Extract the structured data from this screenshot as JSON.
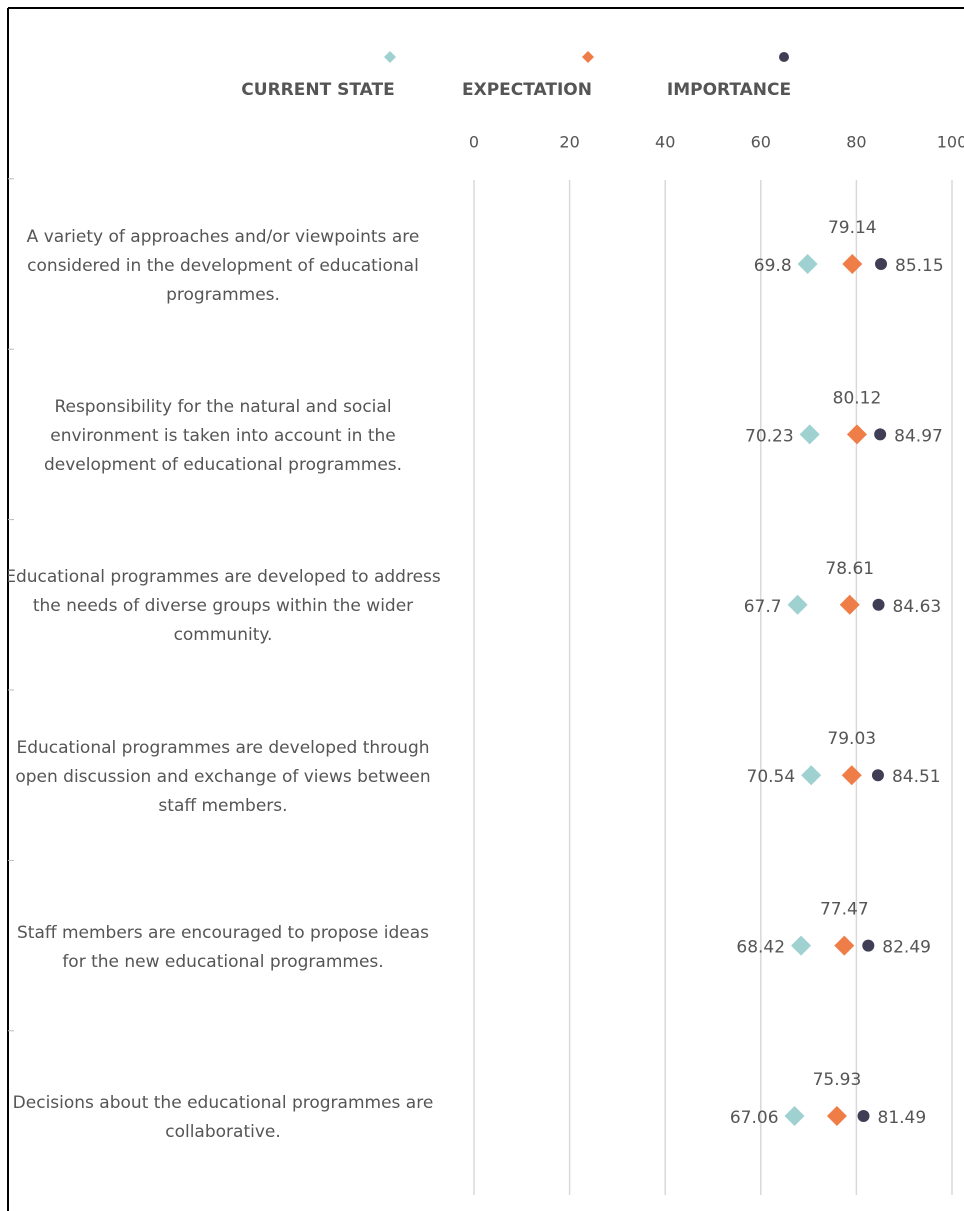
{
  "chart_data": {
    "type": "dot",
    "categories": [
      "A variety of approaches and/or viewpoints are considered in the development of educational programmes.",
      "Responsibility for the natural and social environment is taken into account in the development of educational programmes.",
      "Educational programmes are developed to address the needs of diverse groups within the wider community.",
      "Educational programmes are developed through open discussion and exchange of views between staff members.",
      "Staff members are encouraged to propose ideas for the new educational programmes.",
      "Decisions about the educational programmes are collaborative."
    ],
    "series": [
      {
        "name": "CURRENT STATE",
        "color": "#9fd1d1",
        "marker": "diamond",
        "values": [
          69.8,
          70.23,
          67.7,
          70.54,
          68.42,
          67.06
        ]
      },
      {
        "name": "EXPECTATION",
        "color": "#ef7d48",
        "marker": "diamond",
        "values": [
          79.14,
          80.12,
          78.61,
          79.03,
          77.47,
          75.93
        ]
      },
      {
        "name": "IMPORTANCE",
        "color": "#403e55",
        "marker": "circle",
        "values": [
          85.15,
          84.97,
          84.63,
          84.51,
          82.49,
          81.49
        ]
      }
    ],
    "xlim": [
      0,
      100
    ],
    "xticks": [
      0,
      20,
      40,
      60,
      80,
      100
    ],
    "grid": true
  }
}
